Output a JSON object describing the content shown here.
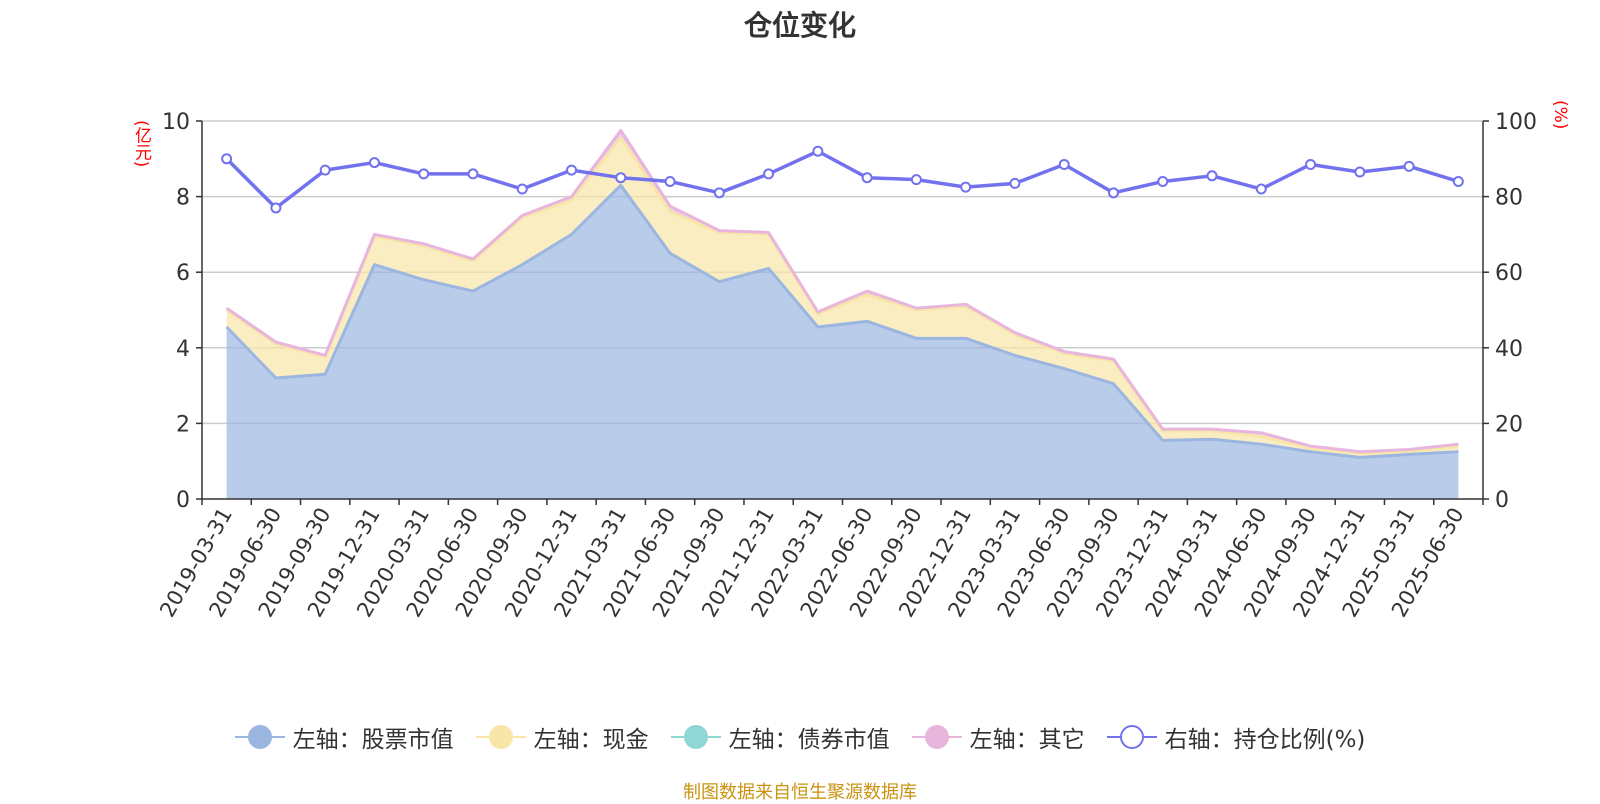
{
  "title": "仓位变化",
  "source": "制图数据来自恒生聚源数据库",
  "left_unit": "(亿元)",
  "right_unit": "(%)",
  "colors": {
    "stock": "#9bb6e0",
    "cash": "#f8e6a8",
    "bond": "#8fd6d4",
    "other": "#e8b5dd",
    "ratio": "#7272ee",
    "unit_text": "#ff0000",
    "source_text": "#c9930f"
  },
  "legend": [
    {
      "label": "左轴：股票市值",
      "color": "#9bb6e0",
      "style": "filled"
    },
    {
      "label": "左轴：现金",
      "color": "#f8e6a8",
      "style": "filled"
    },
    {
      "label": "左轴：债券市值",
      "color": "#8fd6d4",
      "style": "filled"
    },
    {
      "label": "左轴：其它",
      "color": "#e8b5dd",
      "style": "filled"
    },
    {
      "label": "右轴：持仓比例(%)",
      "color": "#7272ee",
      "style": "hollow"
    }
  ],
  "chart_data": {
    "type": "area",
    "categories": [
      "2019-03-31",
      "2019-06-30",
      "2019-09-30",
      "2019-12-31",
      "2020-03-31",
      "2020-06-30",
      "2020-09-30",
      "2020-12-31",
      "2021-03-31",
      "2021-06-30",
      "2021-09-30",
      "2021-12-31",
      "2022-03-31",
      "2022-06-30",
      "2022-09-30",
      "2022-12-31",
      "2023-03-31",
      "2023-06-30",
      "2023-09-30",
      "2023-12-31",
      "2024-03-31",
      "2024-06-30",
      "2024-09-30",
      "2024-12-31",
      "2025-03-31",
      "2025-06-30"
    ],
    "left_axis": {
      "ylim": [
        0,
        10
      ],
      "ticks": [
        0,
        2,
        4,
        6,
        8,
        10
      ]
    },
    "right_axis": {
      "ylim": [
        0,
        100
      ],
      "ticks": [
        0,
        20,
        40,
        60,
        80,
        100
      ]
    },
    "grid": true,
    "legend_position": "bottom",
    "series": [
      {
        "name": "左轴：股票市值",
        "axis": "left",
        "kind": "stacked-area",
        "values": [
          4.55,
          3.2,
          3.3,
          6.2,
          5.8,
          5.5,
          6.2,
          7.0,
          8.3,
          6.5,
          5.75,
          6.1,
          4.55,
          4.7,
          4.25,
          4.25,
          3.8,
          3.45,
          3.05,
          1.55,
          1.58,
          1.45,
          1.25,
          1.1,
          1.18,
          1.25
        ]
      },
      {
        "name": "左轴：现金",
        "axis": "left",
        "kind": "stacked-area",
        "values": [
          0.45,
          0.9,
          0.45,
          0.75,
          0.9,
          0.8,
          1.25,
          0.9,
          1.25,
          1.1,
          1.3,
          0.9,
          0.35,
          0.7,
          0.75,
          0.85,
          0.55,
          0.4,
          0.6,
          0.25,
          0.22,
          0.2,
          0.1,
          0.1,
          0.08,
          0.15
        ]
      },
      {
        "name": "左轴：债券市值",
        "axis": "left",
        "kind": "stacked-area",
        "values": [
          0,
          0,
          0,
          0,
          0,
          0,
          0,
          0,
          0,
          0,
          0,
          0,
          0,
          0,
          0,
          0,
          0,
          0,
          0,
          0,
          0,
          0,
          0,
          0,
          0,
          0
        ]
      },
      {
        "name": "左轴：其它",
        "axis": "left",
        "kind": "stacked-area",
        "values": [
          0.05,
          0.05,
          0.05,
          0.05,
          0.05,
          0.05,
          0.05,
          0.1,
          0.2,
          0.15,
          0.05,
          0.05,
          0.05,
          0.1,
          0.05,
          0.05,
          0.05,
          0.05,
          0.05,
          0.05,
          0.05,
          0.1,
          0.05,
          0.05,
          0.05,
          0.05
        ]
      },
      {
        "name": "右轴：持仓比例(%)",
        "axis": "right",
        "kind": "line",
        "values": [
          90,
          77,
          87,
          89,
          86,
          86,
          82,
          87,
          85,
          84,
          81,
          86,
          92,
          85,
          84.5,
          82.5,
          83.5,
          88.5,
          81,
          84,
          85.5,
          82,
          88.5,
          86.5,
          88,
          84
        ]
      }
    ]
  }
}
